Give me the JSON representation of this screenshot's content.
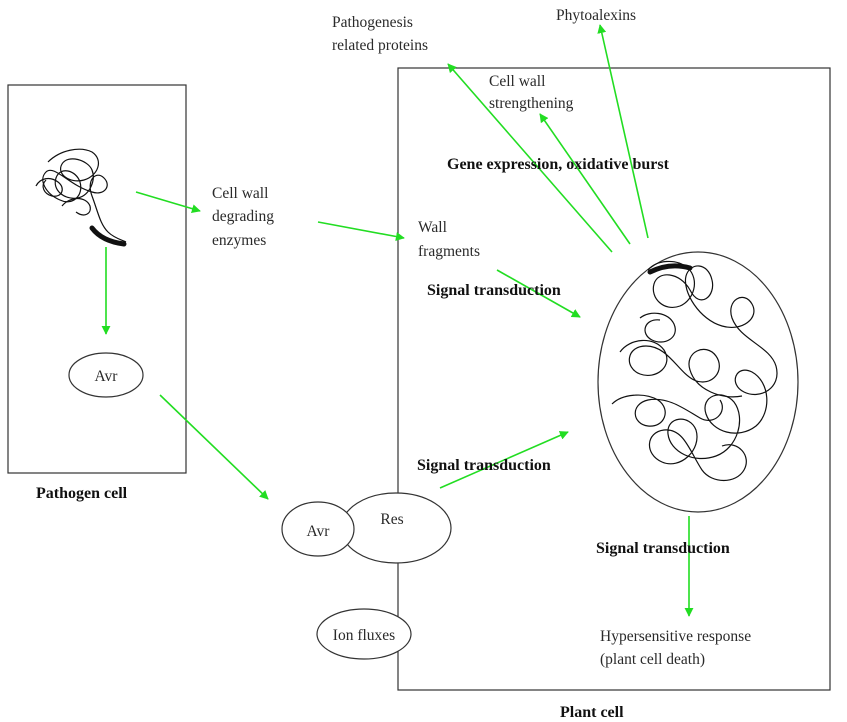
{
  "colors": {
    "arrow": "#22dd22",
    "line": "#333333",
    "background": "#ffffff"
  },
  "labels": {
    "pathogenesis_proteins": [
      "Pathogenesis",
      "related proteins"
    ],
    "phytoalexins": "Phytoalexins",
    "cell_wall_strengthening": [
      "Cell wall",
      "strengthening"
    ],
    "gene_expression": "Gene expression, oxidative burst",
    "cell_wall_enzymes": [
      "Cell wall",
      "degrading",
      "enzymes"
    ],
    "wall_fragments": [
      "Wall",
      "fragments"
    ],
    "signal_transduction_1": "Signal transduction",
    "signal_transduction_2": "Signal transduction",
    "signal_transduction_3": "Signal transduction",
    "avr_pathogen": "Avr",
    "avr_plant": "Avr",
    "res": "Res",
    "ion_fluxes": "Ion fluxes",
    "hypersensitive": [
      "Hypersensitive response",
      "(plant cell death)"
    ],
    "pathogen_cell": "Pathogen cell",
    "plant_cell": "Plant cell"
  }
}
